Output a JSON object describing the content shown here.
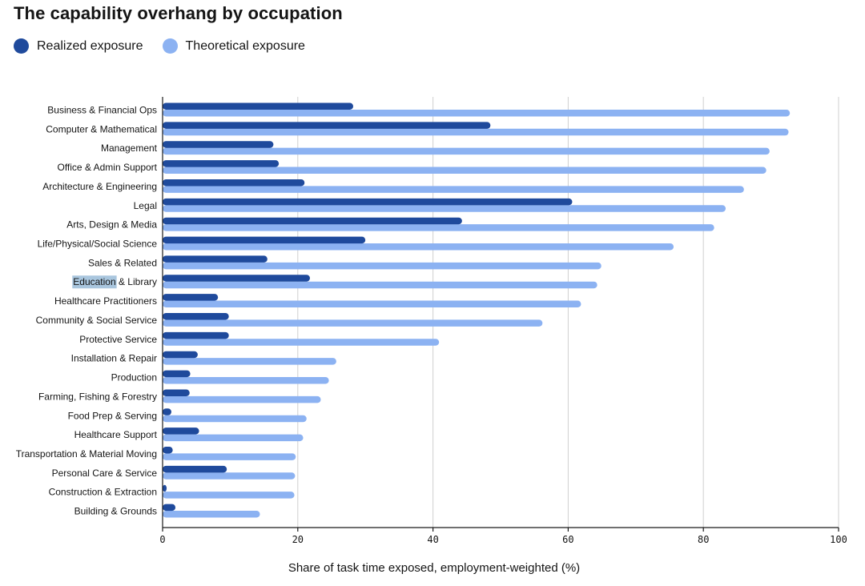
{
  "colors": {
    "realized": "#1f4a9c",
    "theoretical": "#8cb2f2",
    "grid": "#cfcfcf",
    "axis": "#1a1a1a",
    "text": "#141414",
    "highlight": "#a9c6de"
  },
  "chart_data": {
    "type": "bar",
    "orientation": "horizontal",
    "title": "The capability overhang by occupation",
    "xlabel": "Share of task time exposed, employment-weighted (%)",
    "ylabel": "",
    "xlim": [
      0,
      100
    ],
    "xticks": [
      0,
      20,
      40,
      60,
      80,
      100
    ],
    "grid": true,
    "legend_position": "top-left",
    "categories": [
      "Business & Financial Ops",
      "Computer & Mathematical",
      "Management",
      "Office & Admin Support",
      "Architecture & Engineering",
      "Legal",
      "Arts, Design & Media",
      "Life/Physical/Social Science",
      "Sales & Related",
      "Education & Library",
      "Healthcare Practitioners",
      "Community & Social Service",
      "Protective Service",
      "Installation & Repair",
      "Production",
      "Farming, Fishing & Forestry",
      "Food Prep & Serving",
      "Healthcare Support",
      "Transportation & Material Moving",
      "Personal Care & Service",
      "Construction & Extraction",
      "Building & Grounds"
    ],
    "series": [
      {
        "name": "Realized exposure",
        "values": [
          28.2,
          48.5,
          16.4,
          17.2,
          21.0,
          60.6,
          44.3,
          30.0,
          15.5,
          21.8,
          8.2,
          9.8,
          9.8,
          5.2,
          4.1,
          4.0,
          1.3,
          5.4,
          1.5,
          9.5,
          0.6,
          1.9
        ]
      },
      {
        "name": "Theoretical exposure",
        "values": [
          92.8,
          92.6,
          89.8,
          89.3,
          86.0,
          83.3,
          81.6,
          75.6,
          64.9,
          64.3,
          61.9,
          56.2,
          40.9,
          25.7,
          24.6,
          23.4,
          21.3,
          20.8,
          19.7,
          19.6,
          19.5,
          14.4
        ]
      }
    ],
    "highlighted_text": "Education"
  }
}
